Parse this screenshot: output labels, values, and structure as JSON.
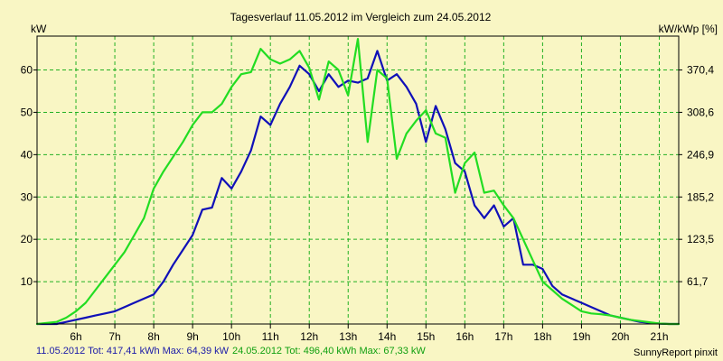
{
  "chart_data": {
    "type": "line",
    "title": "Tagesverlauf 11.05.2012 im Vergleich zum 24.05.2012",
    "ylabel_left": "kW",
    "ylabel_right": "kW/kWp [%]",
    "x_ticks": [
      "6h",
      "7h",
      "8h",
      "9h",
      "10h",
      "11h",
      "12h",
      "13h",
      "14h",
      "15h",
      "16h",
      "17h",
      "18h",
      "19h",
      "20h",
      "21h"
    ],
    "y_ticks_left": [
      "10",
      "20",
      "30",
      "40",
      "50",
      "60"
    ],
    "y_ticks_right": [
      "61,7",
      "123,5",
      "185,2",
      "246,9",
      "308,6",
      "370,4"
    ],
    "xlim": [
      5.0,
      21.5
    ],
    "ylim": [
      0,
      68
    ],
    "grid": true,
    "series": [
      {
        "name": "11.05.2012",
        "color": "#1010b8",
        "x": [
          5.0,
          5.5,
          5.75,
          6.0,
          6.25,
          6.5,
          6.75,
          7.0,
          7.25,
          7.5,
          7.75,
          8.0,
          8.25,
          8.5,
          8.75,
          9.0,
          9.25,
          9.5,
          9.75,
          10.0,
          10.25,
          10.5,
          10.75,
          11.0,
          11.25,
          11.5,
          11.75,
          12.0,
          12.25,
          12.5,
          12.75,
          13.0,
          13.25,
          13.5,
          13.75,
          14.0,
          14.25,
          14.5,
          14.75,
          15.0,
          15.25,
          15.5,
          15.75,
          16.0,
          16.25,
          16.5,
          16.75,
          17.0,
          17.25,
          17.5,
          17.75,
          18.0,
          18.25,
          18.5,
          18.75,
          19.0,
          19.25,
          19.5,
          19.75,
          20.0,
          20.25,
          20.5,
          20.75,
          21.0,
          21.25,
          21.5
        ],
        "values": [
          0,
          0,
          0.5,
          1.0,
          1.5,
          2.0,
          2.5,
          3.0,
          4.0,
          5.0,
          6.0,
          7.0,
          10.0,
          14.0,
          17.5,
          21.0,
          27.0,
          27.5,
          34.5,
          32.0,
          36.0,
          41.0,
          49.0,
          47.0,
          52.0,
          56.0,
          61.0,
          59.0,
          55.0,
          59.0,
          56.0,
          57.5,
          57.0,
          58.0,
          64.5,
          57.5,
          59.0,
          56.0,
          52.0,
          43.0,
          51.5,
          46.0,
          38.0,
          36.0,
          28.0,
          25.0,
          28.0,
          23.0,
          25.0,
          14.0,
          14.0,
          13.0,
          9.0,
          7.0,
          6.0,
          5.0,
          4.0,
          3.0,
          2.0,
          1.5,
          1.0,
          0.5,
          0.3,
          0.1,
          0,
          0
        ]
      },
      {
        "name": "24.05.2012",
        "color": "#22dd22",
        "x": [
          5.0,
          5.5,
          5.75,
          6.0,
          6.25,
          6.5,
          6.75,
          7.0,
          7.25,
          7.5,
          7.75,
          8.0,
          8.25,
          8.5,
          8.75,
          9.0,
          9.25,
          9.5,
          9.75,
          10.0,
          10.25,
          10.5,
          10.75,
          11.0,
          11.25,
          11.5,
          11.75,
          12.0,
          12.25,
          12.5,
          12.75,
          13.0,
          13.25,
          13.5,
          13.75,
          14.0,
          14.25,
          14.5,
          14.75,
          15.0,
          15.25,
          15.5,
          15.75,
          16.0,
          16.25,
          16.5,
          16.75,
          17.0,
          17.25,
          17.5,
          17.75,
          18.0,
          18.25,
          18.5,
          18.75,
          19.0,
          19.25,
          19.5,
          19.75,
          20.0,
          20.25,
          20.5,
          20.75,
          21.0,
          21.25,
          21.5
        ],
        "values": [
          0,
          0.5,
          1.5,
          3.0,
          5.0,
          8.0,
          11.0,
          14.0,
          17.0,
          21.0,
          25.0,
          32.0,
          36.0,
          39.5,
          43.0,
          47.0,
          50.0,
          50.0,
          52.0,
          56.0,
          59.0,
          59.5,
          65.0,
          62.5,
          61.5,
          62.5,
          64.5,
          60.5,
          53.0,
          62.0,
          60.0,
          54.0,
          67.33,
          43.0,
          60.0,
          58.0,
          39.0,
          45.0,
          48.0,
          50.5,
          45.0,
          44.0,
          31.0,
          38.0,
          40.5,
          31.0,
          31.5,
          28.0,
          25.0,
          20.0,
          15.0,
          10.0,
          8.0,
          6.0,
          4.5,
          3.0,
          2.5,
          2.3,
          2.0,
          1.5,
          1.0,
          0.7,
          0.4,
          0.1,
          0,
          0
        ]
      }
    ]
  },
  "footer": {
    "blue_text": "11.05.2012 Tot: 417,41 kWh Max: 64,39 kW",
    "green_text": "24.05.2012 Tot: 496,40 kWh Max: 67,33 kW",
    "brand_text": "SunnyReport pinxit"
  },
  "colors": {
    "background": "#f9f6c4",
    "plot_border": "#000000",
    "grid": "#22b022"
  }
}
